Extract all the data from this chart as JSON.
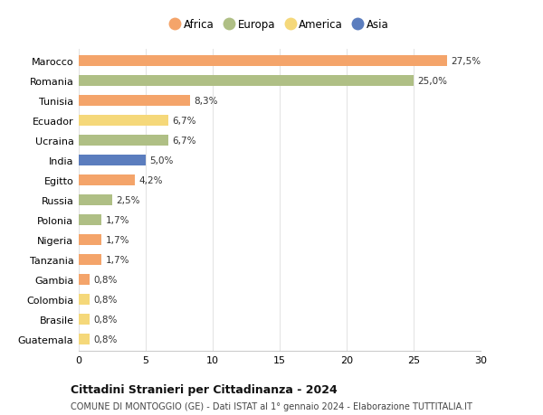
{
  "countries": [
    "Marocco",
    "Romania",
    "Tunisia",
    "Ecuador",
    "Ucraina",
    "India",
    "Egitto",
    "Russia",
    "Polonia",
    "Nigeria",
    "Tanzania",
    "Gambia",
    "Colombia",
    "Brasile",
    "Guatemala"
  ],
  "values": [
    27.5,
    25.0,
    8.3,
    6.7,
    6.7,
    5.0,
    4.2,
    2.5,
    1.7,
    1.7,
    1.7,
    0.8,
    0.8,
    0.8,
    0.8
  ],
  "labels": [
    "27,5%",
    "25,0%",
    "8,3%",
    "6,7%",
    "6,7%",
    "5,0%",
    "4,2%",
    "2,5%",
    "1,7%",
    "1,7%",
    "1,7%",
    "0,8%",
    "0,8%",
    "0,8%",
    "0,8%"
  ],
  "continents": [
    "Africa",
    "Europa",
    "Africa",
    "America",
    "Europa",
    "Asia",
    "Africa",
    "Europa",
    "Europa",
    "Africa",
    "Africa",
    "Africa",
    "America",
    "America",
    "America"
  ],
  "colors": {
    "Africa": "#F4A46A",
    "Europa": "#AFBF85",
    "America": "#F5D87A",
    "Asia": "#5B7DBE"
  },
  "legend_order": [
    "Africa",
    "Europa",
    "America",
    "Asia"
  ],
  "title": "Cittadini Stranieri per Cittadinanza - 2024",
  "subtitle": "COMUNE DI MONTOGGIO (GE) - Dati ISTAT al 1° gennaio 2024 - Elaborazione TUTTITALIA.IT",
  "xlim": [
    0,
    30
  ],
  "xticks": [
    0,
    5,
    10,
    15,
    20,
    25,
    30
  ],
  "background_color": "#ffffff",
  "bar_height": 0.55,
  "figsize": [
    6.0,
    4.6
  ],
  "dpi": 100
}
